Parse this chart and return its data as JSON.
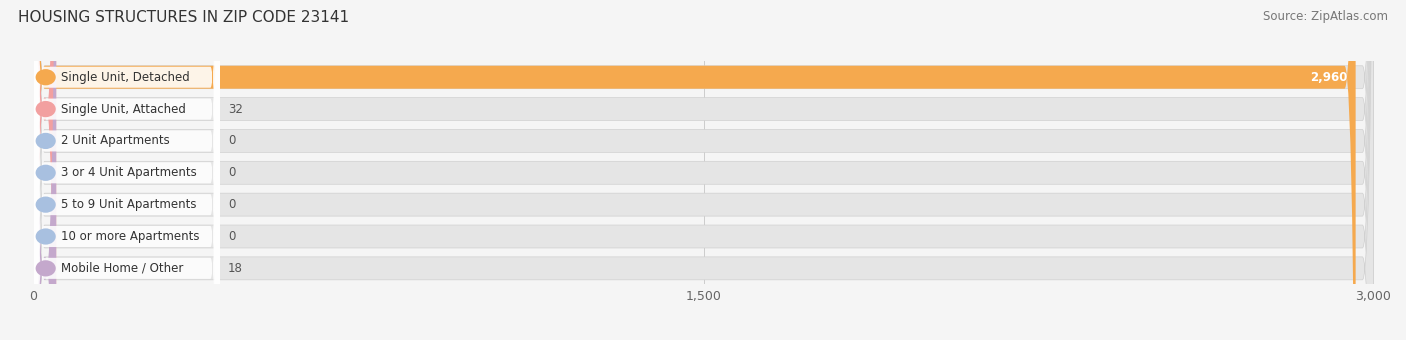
{
  "title": "HOUSING STRUCTURES IN ZIP CODE 23141",
  "source": "Source: ZipAtlas.com",
  "categories": [
    "Single Unit, Detached",
    "Single Unit, Attached",
    "2 Unit Apartments",
    "3 or 4 Unit Apartments",
    "5 to 9 Unit Apartments",
    "10 or more Apartments",
    "Mobile Home / Other"
  ],
  "values": [
    2960,
    32,
    0,
    0,
    0,
    0,
    18
  ],
  "bar_colors": [
    "#F5A94E",
    "#F2A0A0",
    "#A8C0E0",
    "#A8C0E0",
    "#A8C0E0",
    "#A8C0E0",
    "#C4A8CC"
  ],
  "xlim_max": 3000,
  "xticks": [
    0,
    1500,
    3000
  ],
  "xtick_labels": [
    "0",
    "1,500",
    "3,000"
  ],
  "bg_color": "#f5f5f5",
  "bar_bg_color": "#e5e5e5",
  "bar_row_bg": "#eeeeee",
  "title_fontsize": 11,
  "source_fontsize": 8.5,
  "label_fontsize": 8.5,
  "value_fontsize": 8.5,
  "figsize": [
    14.06,
    3.4
  ],
  "dpi": 100
}
